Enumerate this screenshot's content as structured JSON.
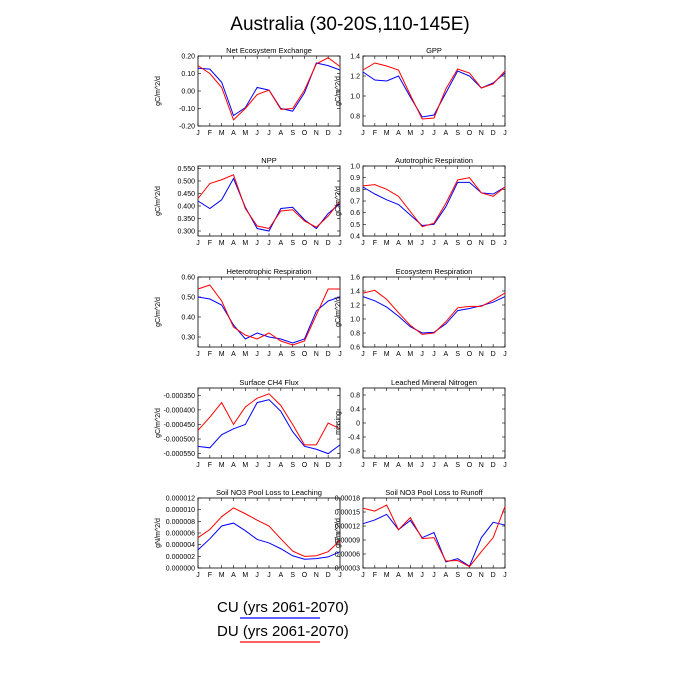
{
  "figure": {
    "title": "Australia (30-20S,110-145E)",
    "legend": [
      {
        "label": "CU (yrs 2061-2070)",
        "color": "#0000ff"
      },
      {
        "label": "DU (yrs 2061-2070)",
        "color": "#ff0000"
      }
    ]
  },
  "chart_data": [
    {
      "type": "line",
      "title": "Net Ecosystem Exchange",
      "ylabel": "gC/m^2/d",
      "categories": [
        "J",
        "F",
        "M",
        "A",
        "M",
        "J",
        "J",
        "A",
        "S",
        "O",
        "N",
        "D",
        "J"
      ],
      "ylim": [
        -0.2,
        0.2
      ],
      "yticks": [
        -0.2,
        -0.1,
        0.0,
        0.1,
        0.2
      ],
      "ytick_labels": [
        "-0.20",
        "-0.10",
        "0.00",
        "0.10",
        "0.20"
      ],
      "series": [
        {
          "name": "CU (yrs 2061-2070)",
          "color": "#0000ff",
          "values": [
            0.13,
            0.125,
            0.05,
            -0.14,
            -0.095,
            0.02,
            0.005,
            -0.1,
            -0.115,
            -0.01,
            0.16,
            0.145,
            0.12
          ]
        },
        {
          "name": "DU (yrs 2061-2070)",
          "color": "#ff0000",
          "values": [
            0.145,
            0.1,
            0.02,
            -0.165,
            -0.1,
            -0.02,
            0.005,
            -0.105,
            -0.1,
            0.005,
            0.155,
            0.19,
            0.14
          ]
        }
      ]
    },
    {
      "type": "line",
      "title": "GPP",
      "ylabel": "gC/m^2/d",
      "categories": [
        "J",
        "F",
        "M",
        "A",
        "M",
        "J",
        "J",
        "A",
        "S",
        "O",
        "N",
        "D",
        "J"
      ],
      "ylim": [
        0.7,
        1.4
      ],
      "yticks": [
        0.8,
        1.0,
        1.2,
        1.4
      ],
      "ytick_labels": [
        "0.8",
        "1.0",
        "1.2",
        "1.4"
      ],
      "series": [
        {
          "name": "CU (yrs 2061-2070)",
          "color": "#0000ff",
          "values": [
            1.24,
            1.16,
            1.15,
            1.2,
            0.99,
            0.79,
            0.81,
            1.03,
            1.25,
            1.2,
            1.08,
            1.13,
            1.23
          ]
        },
        {
          "name": "DU (yrs 2061-2070)",
          "color": "#ff0000",
          "values": [
            1.26,
            1.33,
            1.3,
            1.26,
            1.01,
            0.77,
            0.78,
            1.07,
            1.27,
            1.23,
            1.08,
            1.12,
            1.25
          ]
        }
      ]
    },
    {
      "type": "line",
      "title": "NPP",
      "ylabel": "gC/m^2/d",
      "categories": [
        "J",
        "F",
        "M",
        "A",
        "M",
        "J",
        "J",
        "A",
        "S",
        "O",
        "N",
        "D",
        "J"
      ],
      "ylim": [
        0.28,
        0.56
      ],
      "yticks": [
        0.3,
        0.35,
        0.4,
        0.45,
        0.5,
        0.55
      ],
      "ytick_labels": [
        "0.300",
        "0.350",
        "0.400",
        "0.450",
        "0.500",
        "0.550"
      ],
      "series": [
        {
          "name": "CU (yrs 2061-2070)",
          "color": "#0000ff",
          "values": [
            0.42,
            0.39,
            0.425,
            0.51,
            0.395,
            0.31,
            0.3,
            0.39,
            0.395,
            0.345,
            0.31,
            0.37,
            0.41
          ]
        },
        {
          "name": "DU (yrs 2061-2070)",
          "color": "#ff0000",
          "values": [
            0.43,
            0.49,
            0.505,
            0.525,
            0.39,
            0.32,
            0.31,
            0.38,
            0.385,
            0.34,
            0.315,
            0.36,
            0.42
          ]
        }
      ]
    },
    {
      "type": "line",
      "title": "Autotrophic Respiration",
      "ylabel": "gC/m^2/d",
      "categories": [
        "J",
        "F",
        "M",
        "A",
        "M",
        "J",
        "J",
        "A",
        "S",
        "O",
        "N",
        "D",
        "J"
      ],
      "ylim": [
        0.4,
        1.0
      ],
      "yticks": [
        0.4,
        0.5,
        0.6,
        0.7,
        0.8,
        0.9,
        1.0
      ],
      "ytick_labels": [
        "0.4",
        "0.5",
        "0.6",
        "0.7",
        "0.8",
        "0.9",
        "1.0"
      ],
      "series": [
        {
          "name": "CU (yrs 2061-2070)",
          "color": "#0000ff",
          "values": [
            0.82,
            0.76,
            0.71,
            0.67,
            0.58,
            0.49,
            0.5,
            0.65,
            0.86,
            0.86,
            0.77,
            0.76,
            0.82
          ]
        },
        {
          "name": "DU (yrs 2061-2070)",
          "color": "#ff0000",
          "values": [
            0.83,
            0.84,
            0.8,
            0.74,
            0.61,
            0.48,
            0.51,
            0.68,
            0.88,
            0.9,
            0.77,
            0.74,
            0.82
          ]
        }
      ]
    },
    {
      "type": "line",
      "title": "Heterotrophic Respiration",
      "ylabel": "gC/m^2/d",
      "categories": [
        "J",
        "F",
        "M",
        "A",
        "M",
        "J",
        "J",
        "A",
        "S",
        "O",
        "N",
        "D",
        "J"
      ],
      "ylim": [
        0.25,
        0.6
      ],
      "yticks": [
        0.3,
        0.4,
        0.5,
        0.6
      ],
      "ytick_labels": [
        "0.30",
        "0.40",
        "0.50",
        "0.60"
      ],
      "series": [
        {
          "name": "CU (yrs 2061-2070)",
          "color": "#0000ff",
          "values": [
            0.5,
            0.49,
            0.46,
            0.36,
            0.29,
            0.32,
            0.3,
            0.29,
            0.27,
            0.29,
            0.43,
            0.48,
            0.5
          ]
        },
        {
          "name": "DU (yrs 2061-2070)",
          "color": "#ff0000",
          "values": [
            0.54,
            0.56,
            0.48,
            0.35,
            0.31,
            0.29,
            0.32,
            0.28,
            0.26,
            0.28,
            0.41,
            0.54,
            0.54
          ]
        }
      ]
    },
    {
      "type": "line",
      "title": "Ecosystem Respiration",
      "ylabel": "gC/m^2/d",
      "categories": [
        "J",
        "F",
        "M",
        "A",
        "M",
        "J",
        "J",
        "A",
        "S",
        "O",
        "N",
        "D",
        "J"
      ],
      "ylim": [
        0.6,
        1.6
      ],
      "yticks": [
        0.6,
        0.8,
        1.0,
        1.2,
        1.4,
        1.6
      ],
      "ytick_labels": [
        "0.6",
        "0.8",
        "1.0",
        "1.2",
        "1.4",
        "1.6"
      ],
      "series": [
        {
          "name": "CU (yrs 2061-2070)",
          "color": "#0000ff",
          "values": [
            1.32,
            1.26,
            1.17,
            1.04,
            0.89,
            0.8,
            0.81,
            0.93,
            1.12,
            1.15,
            1.19,
            1.24,
            1.32
          ]
        },
        {
          "name": "DU (yrs 2061-2070)",
          "color": "#ff0000",
          "values": [
            1.37,
            1.41,
            1.28,
            1.09,
            0.91,
            0.78,
            0.8,
            0.96,
            1.16,
            1.18,
            1.18,
            1.27,
            1.37
          ]
        }
      ]
    },
    {
      "type": "line",
      "title": "Surface CH4 Flux",
      "ylabel": "gC/m^2/d",
      "categories": [
        "J",
        "F",
        "M",
        "A",
        "M",
        "J",
        "J",
        "A",
        "S",
        "O",
        "N",
        "D",
        "J"
      ],
      "ylim": [
        -0.000565,
        -0.000325
      ],
      "yticks": [
        -0.00055,
        -0.0005,
        -0.00045,
        -0.0004,
        -0.00035
      ],
      "ytick_labels": [
        "-0.000550",
        "-0.000500",
        "-0.000450",
        "-0.000400",
        "-0.000350"
      ],
      "series": [
        {
          "name": "CU (yrs 2061-2070)",
          "color": "#0000ff",
          "values": [
            -0.000525,
            -0.00053,
            -0.000485,
            -0.000465,
            -0.00045,
            -0.000375,
            -0.000365,
            -0.000405,
            -0.000475,
            -0.000525,
            -0.000535,
            -0.00055,
            -0.00052
          ]
        },
        {
          "name": "DU (yrs 2061-2070)",
          "color": "#ff0000",
          "values": [
            -0.00047,
            -0.000425,
            -0.000375,
            -0.00045,
            -0.00039,
            -0.00036,
            -0.000345,
            -0.000385,
            -0.00045,
            -0.00052,
            -0.00052,
            -0.000445,
            -0.000465
          ]
        }
      ]
    },
    {
      "type": "line",
      "title": "Leached Mineral Nitrogen",
      "ylabel": "missing",
      "categories": [
        "J",
        "F",
        "M",
        "A",
        "M",
        "J",
        "J",
        "A",
        "S",
        "O",
        "N",
        "D",
        "J"
      ],
      "ylim": [
        -1.0,
        1.0
      ],
      "yticks": [
        -0.8,
        -0.4,
        0.0,
        0.4,
        0.8
      ],
      "ytick_labels": [
        "-0.8",
        "-0.4",
        "0",
        "0.4",
        "0.8"
      ],
      "series": []
    },
    {
      "type": "line",
      "title": "Soil NO3 Pool Loss to Leaching",
      "ylabel": "gN/m^2/d",
      "categories": [
        "J",
        "F",
        "M",
        "A",
        "M",
        "J",
        "J",
        "A",
        "S",
        "O",
        "N",
        "D",
        "J"
      ],
      "ylim": [
        0.0,
        1.2e-05
      ],
      "yticks": [
        0.0,
        2e-06,
        4e-06,
        6e-06,
        8e-06,
        1e-05,
        1.2e-05
      ],
      "ytick_labels": [
        "0.000000",
        "0.000002",
        "0.000004",
        "0.000006",
        "0.000008",
        "0.000010",
        "0.000012"
      ],
      "series": [
        {
          "name": "CU (yrs 2061-2070)",
          "color": "#0000ff",
          "values": [
            3.1e-06,
            5e-06,
            7.2e-06,
            7.7e-06,
            6.4e-06,
            4.9e-06,
            4.3e-06,
            3.3e-06,
            2.1e-06,
            1.5e-06,
            1.6e-06,
            1.9e-06,
            2.8e-06
          ]
        },
        {
          "name": "DU (yrs 2061-2070)",
          "color": "#ff0000",
          "values": [
            5.2e-06,
            6.6e-06,
            8.8e-06,
            1.03e-05,
            9.3e-06,
            8.2e-06,
            7.2e-06,
            5e-06,
            2.9e-06,
            2e-06,
            2.1e-06,
            2.8e-06,
            4.7e-06
          ]
        }
      ]
    },
    {
      "type": "line",
      "title": "Soil NO3 Pool Loss to Runoff",
      "ylabel": "gN/m^2/d",
      "categories": [
        "J",
        "F",
        "M",
        "A",
        "M",
        "J",
        "J",
        "A",
        "S",
        "O",
        "N",
        "D",
        "J"
      ],
      "ylim": [
        3e-05,
        0.00018
      ],
      "yticks": [
        3e-05,
        6e-05,
        9e-05,
        0.00012,
        0.00015,
        0.00018
      ],
      "ytick_labels": [
        "0.00003",
        "0.00006",
        "0.00009",
        "0.00012",
        "0.00015",
        "0.00018"
      ],
      "series": [
        {
          "name": "CU (yrs 2061-2070)",
          "color": "#0000ff",
          "values": [
            0.000125,
            0.000133,
            0.000145,
            0.000112,
            0.000132,
            9.5e-05,
            0.000106,
            4.3e-05,
            5e-05,
            3.4e-05,
            9.5e-05,
            0.000128,
            0.000122
          ]
        },
        {
          "name": "DU (yrs 2061-2070)",
          "color": "#ff0000",
          "values": [
            0.000158,
            0.000152,
            0.000165,
            0.000112,
            0.000138,
            9.3e-05,
            9.5e-05,
            4.5e-05,
            4.6e-05,
            3.3e-05,
            6.5e-05,
            9.5e-05,
            0.000162
          ]
        }
      ]
    }
  ]
}
